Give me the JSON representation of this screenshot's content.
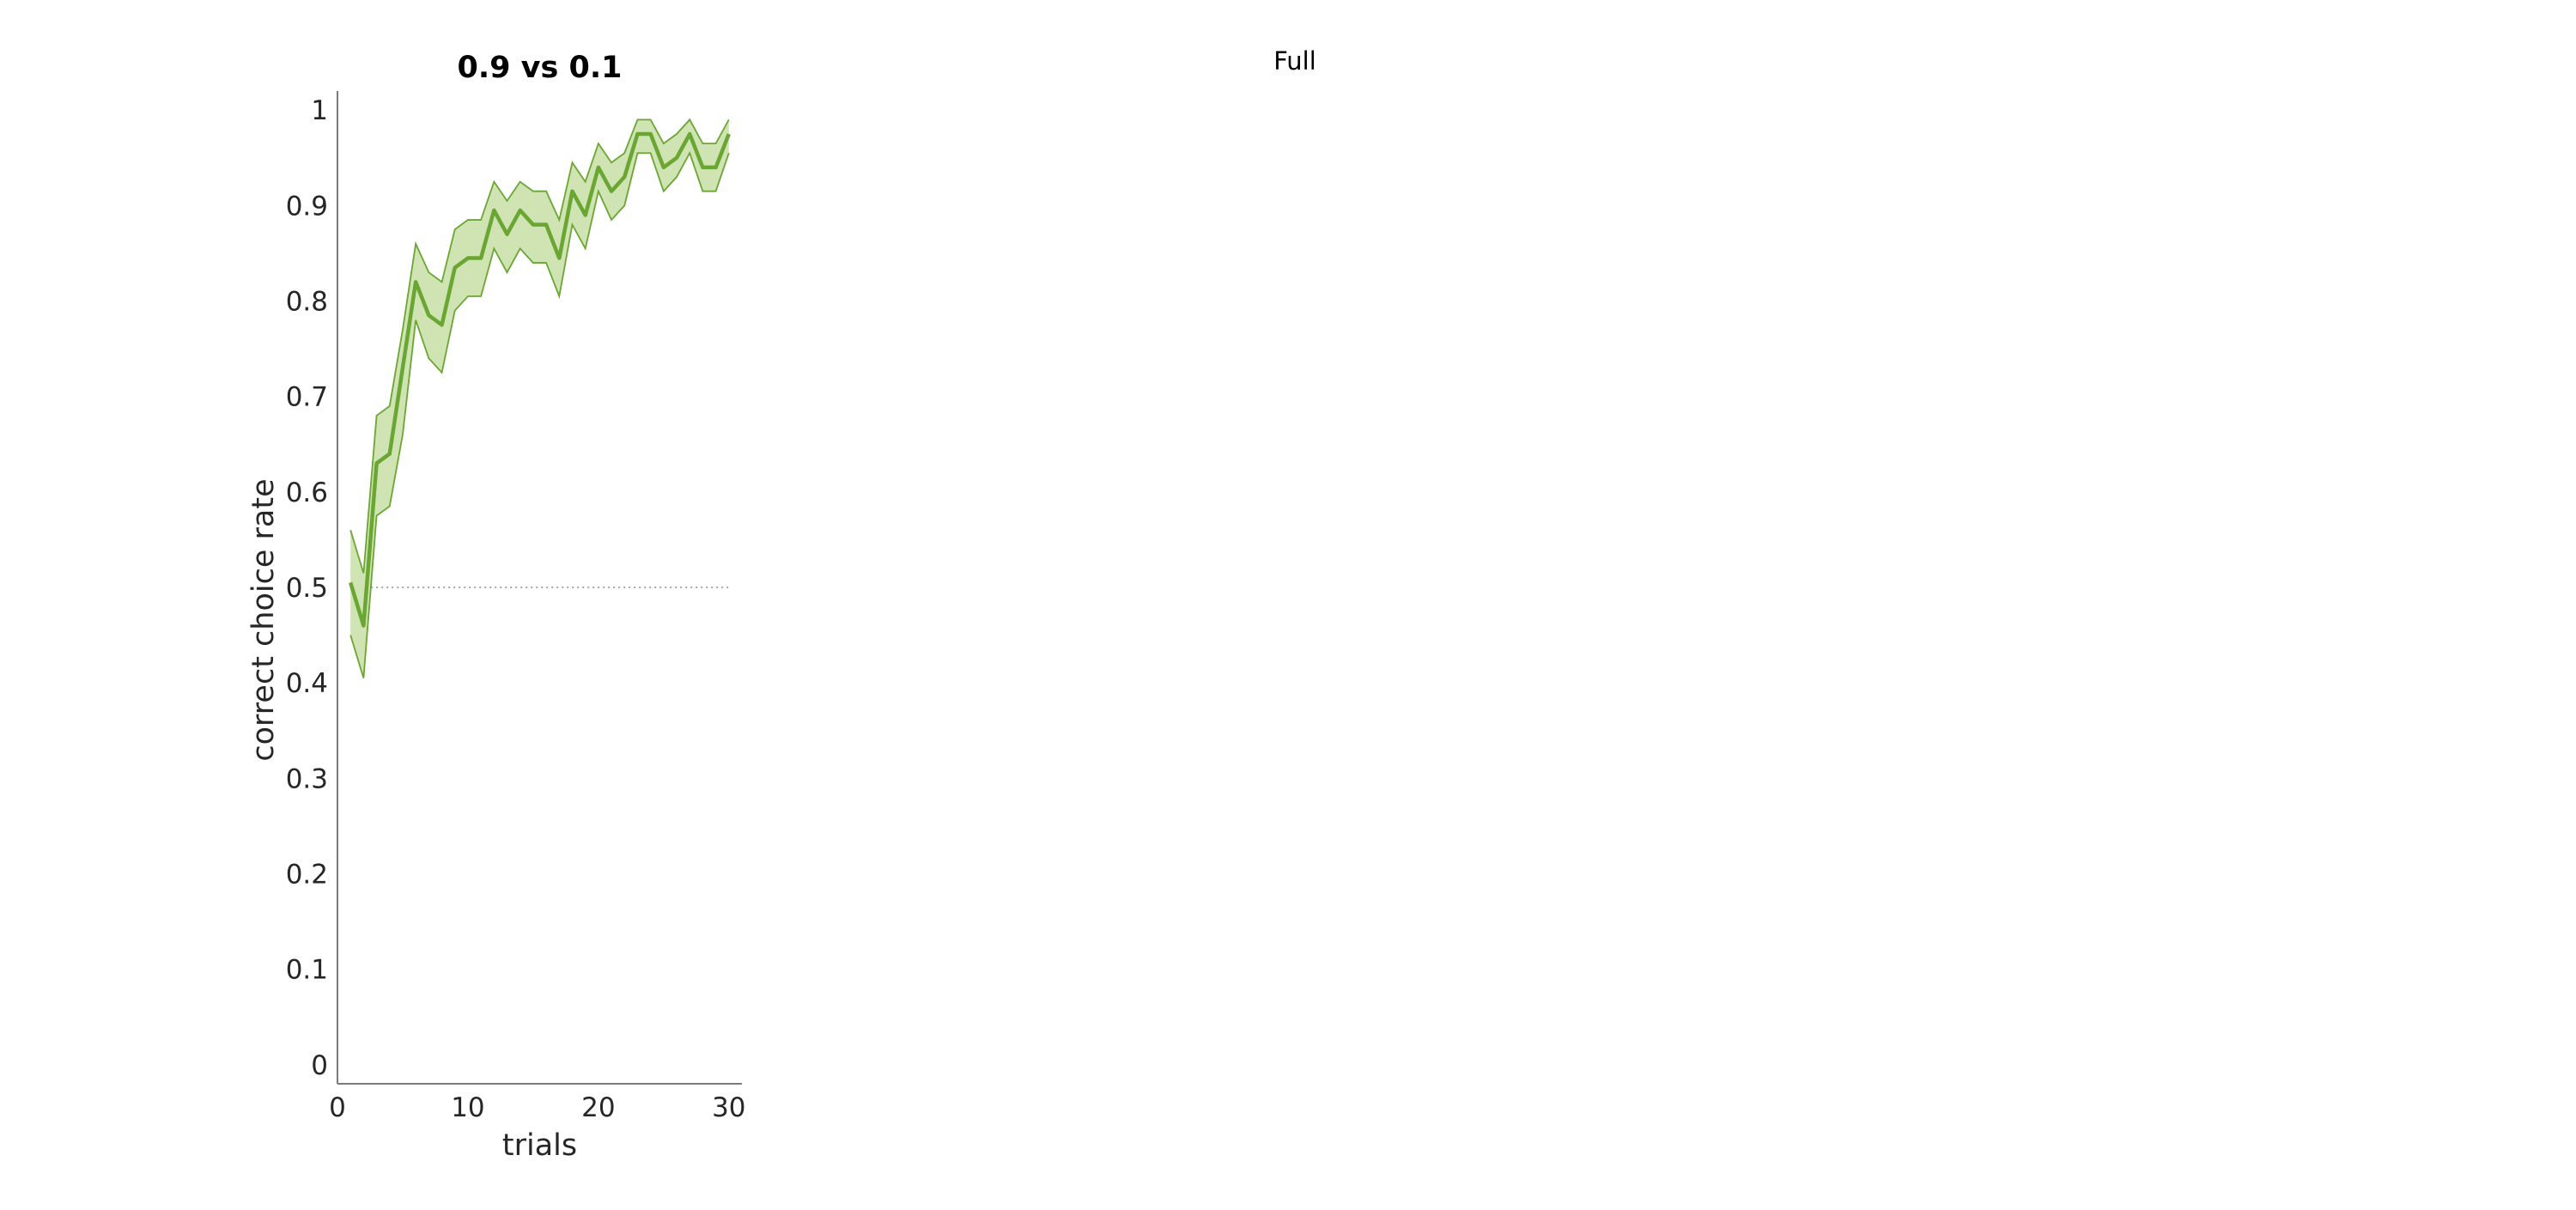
{
  "figure": {
    "suptitle": "Full"
  },
  "chart_data": {
    "type": "line",
    "title": "0.9 vs 0.1",
    "xlabel": "trials",
    "ylabel": "correct choice rate",
    "xlim": [
      0,
      31
    ],
    "ylim": [
      -0.02,
      1.02
    ],
    "xticks": [
      0,
      10,
      20,
      30
    ],
    "xtick_labels": [
      "0",
      "10",
      "20",
      "30"
    ],
    "yticks": [
      0,
      0.1,
      0.2,
      0.3,
      0.4,
      0.5,
      0.6,
      0.7,
      0.8,
      0.9,
      1
    ],
    "ytick_labels": [
      "0",
      "0.1",
      "0.2",
      "0.3",
      "0.4",
      "0.5",
      "0.6",
      "0.7",
      "0.8",
      "0.9",
      "1"
    ],
    "grid": false,
    "reference_line": {
      "y": 0.5,
      "x_range": [
        1,
        30
      ],
      "style": "dotted",
      "color": "#888888"
    },
    "series": [
      {
        "color": "#6aa632",
        "fill_color": "#cfe3b3",
        "x": [
          1,
          2,
          3,
          4,
          5,
          6,
          7,
          8,
          9,
          10,
          11,
          12,
          13,
          14,
          15,
          16,
          17,
          18,
          19,
          20,
          21,
          22,
          23,
          24,
          25,
          26,
          27,
          28,
          29,
          30
        ],
        "y": [
          0.505,
          0.46,
          0.63,
          0.64,
          0.73,
          0.82,
          0.785,
          0.775,
          0.835,
          0.845,
          0.845,
          0.895,
          0.87,
          0.895,
          0.88,
          0.88,
          0.845,
          0.915,
          0.89,
          0.94,
          0.915,
          0.93,
          0.975,
          0.975,
          0.94,
          0.95,
          0.975,
          0.94,
          0.94,
          0.975
        ],
        "upper": [
          0.56,
          0.515,
          0.68,
          0.69,
          0.77,
          0.86,
          0.83,
          0.82,
          0.875,
          0.885,
          0.885,
          0.925,
          0.905,
          0.925,
          0.915,
          0.915,
          0.885,
          0.945,
          0.925,
          0.965,
          0.945,
          0.955,
          0.99,
          0.99,
          0.965,
          0.975,
          0.99,
          0.965,
          0.965,
          0.99
        ],
        "lower": [
          0.45,
          0.405,
          0.575,
          0.585,
          0.66,
          0.78,
          0.74,
          0.725,
          0.79,
          0.805,
          0.805,
          0.855,
          0.83,
          0.855,
          0.84,
          0.84,
          0.805,
          0.88,
          0.855,
          0.915,
          0.885,
          0.9,
          0.955,
          0.955,
          0.915,
          0.93,
          0.955,
          0.915,
          0.915,
          0.955
        ]
      }
    ]
  }
}
